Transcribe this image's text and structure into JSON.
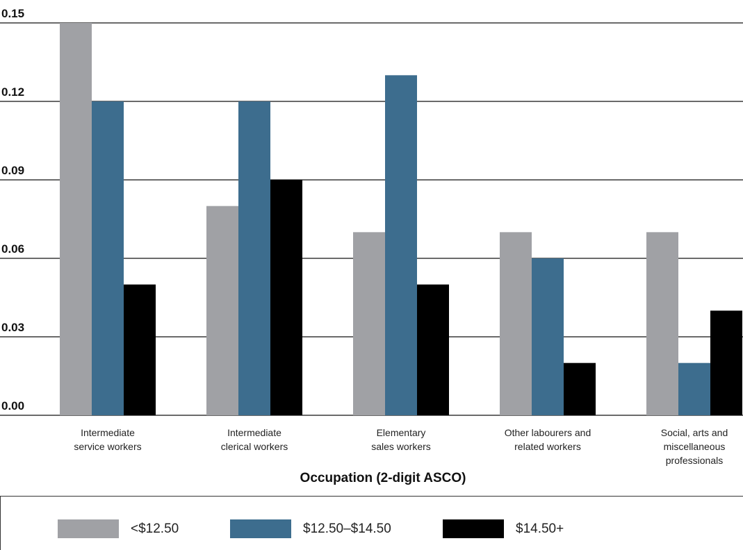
{
  "chart_data": {
    "type": "bar",
    "categories": [
      [
        "Intermediate",
        "service workers"
      ],
      [
        "Intermediate",
        "clerical workers"
      ],
      [
        "Elementary",
        "sales workers"
      ],
      [
        "Other labourers and",
        "related workers"
      ],
      [
        "Social, arts and",
        "miscellaneous",
        "professionals"
      ]
    ],
    "series": [
      {
        "name": "<$12.50",
        "color": "#a0a1a5",
        "values": [
          0.15,
          0.08,
          0.07,
          0.07,
          0.07
        ]
      },
      {
        "name": "$12.50–$14.50",
        "color": "#3d6d8e",
        "values": [
          0.12,
          0.12,
          0.13,
          0.06,
          0.02
        ]
      },
      {
        "name": "$14.50+",
        "color": "#000000",
        "values": [
          0.05,
          0.09,
          0.05,
          0.02,
          0.04
        ]
      }
    ],
    "yticks": [
      "0.00",
      "0.03",
      "0.06",
      "0.09",
      "0.12",
      "0.15"
    ],
    "ylim": [
      0,
      0.15
    ],
    "xlabel": "Occupation (2-digit ASCO)",
    "ylabel": "",
    "grid": true,
    "legend_position": "bottom"
  }
}
